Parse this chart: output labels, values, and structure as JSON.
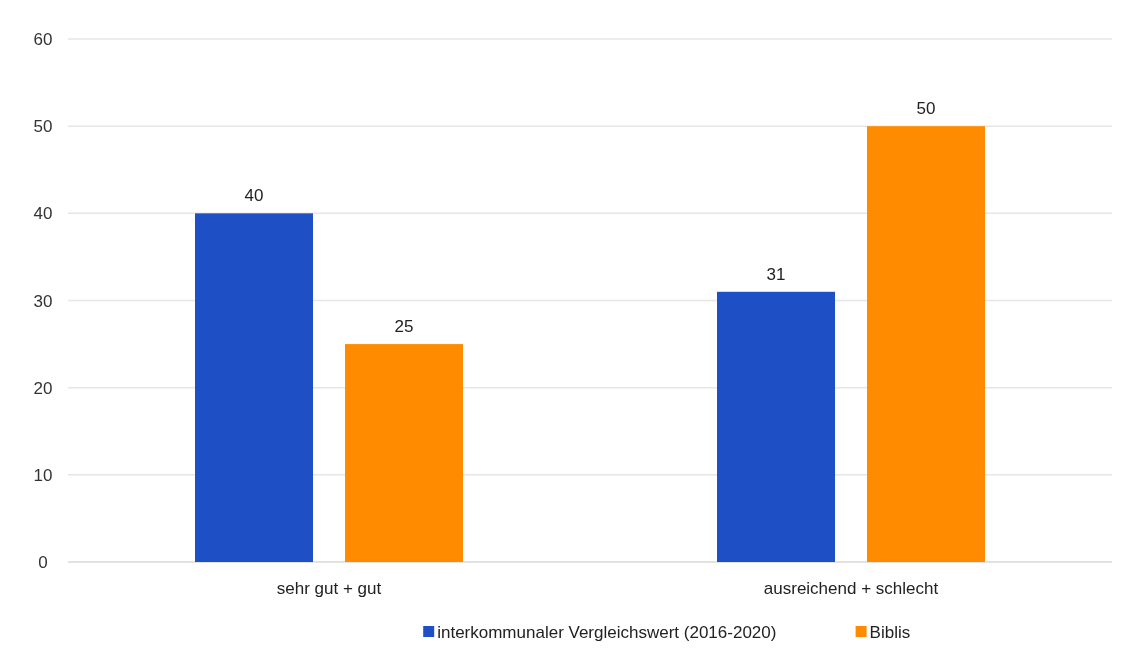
{
  "chart_data": {
    "type": "bar",
    "categories": [
      "sehr gut + gut",
      "ausreichend + schlecht"
    ],
    "series": [
      {
        "name": "interkommunaler Vergleichswert (2016-2020)",
        "color": "#1f4fc4",
        "values": [
          40,
          31
        ]
      },
      {
        "name": "Biblis",
        "color": "#ff8c00",
        "values": [
          25,
          50
        ]
      }
    ],
    "ylim": [
      0,
      60
    ],
    "yticks": [
      0,
      10,
      20,
      30,
      40,
      50,
      60
    ],
    "grid": "y",
    "legend": "bottom",
    "data_labels": true
  }
}
